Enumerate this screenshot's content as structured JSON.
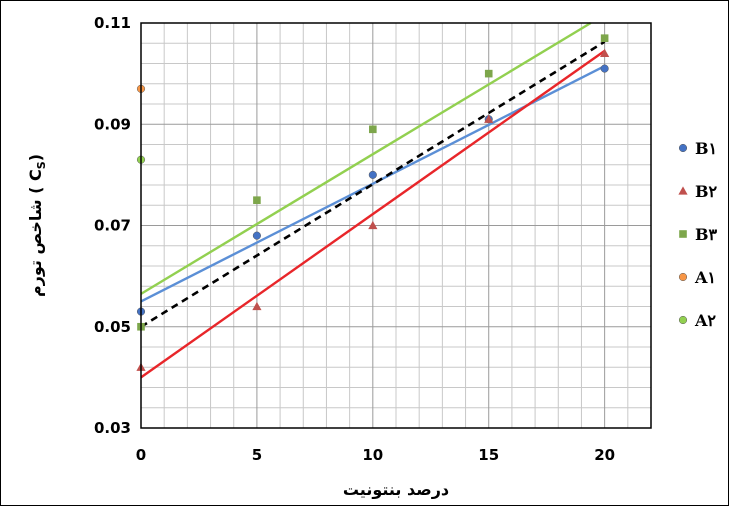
{
  "chart_data": {
    "type": "scatter",
    "xlabel": "درصد بنتونیت",
    "ylabel": "شاخص تورم ( C",
    "ylabel_sub": "S",
    "ylabel_tail": ")",
    "xlim": [
      0,
      22
    ],
    "ylim": [
      0.03,
      0.11
    ],
    "x_ticks": [
      0,
      5,
      10,
      15,
      20
    ],
    "y_ticks": [
      0.03,
      0.05,
      0.07,
      0.09,
      0.11
    ],
    "x_tick_labels": [
      "0",
      "5",
      "10",
      "15",
      "20"
    ],
    "y_tick_labels": [
      "0.03",
      "0.05",
      "0.07",
      "0.09",
      "0.11"
    ],
    "grid": true,
    "legend_position": "right",
    "series": [
      {
        "name": "B1",
        "label": "B١",
        "marker": "circle",
        "color": "#4472C4",
        "points": [
          [
            0,
            0.053
          ],
          [
            5,
            0.068
          ],
          [
            10,
            0.08
          ],
          [
            15,
            0.091
          ],
          [
            20,
            0.101
          ]
        ]
      },
      {
        "name": "B2",
        "label": "B٢",
        "marker": "triangle",
        "color": "#C0504D",
        "points": [
          [
            0,
            0.042
          ],
          [
            5,
            0.054
          ],
          [
            10,
            0.07
          ],
          [
            15,
            0.091
          ],
          [
            20,
            0.104
          ]
        ]
      },
      {
        "name": "B3",
        "label": "B٣",
        "marker": "square",
        "color": "#7DA64B",
        "points": [
          [
            0,
            0.05
          ],
          [
            5,
            0.075
          ],
          [
            10,
            0.089
          ],
          [
            15,
            0.1
          ],
          [
            20,
            0.107
          ]
        ]
      },
      {
        "name": "A1",
        "label": "A١",
        "marker": "circle",
        "color": "#F79646",
        "points": [
          [
            0,
            0.097
          ]
        ]
      },
      {
        "name": "A2",
        "label": "A٢",
        "marker": "circle",
        "color": "#92D050",
        "points": [
          [
            0,
            0.083
          ]
        ]
      }
    ],
    "trendlines": [
      {
        "series": "B1",
        "color": "#5B8FD6",
        "dashed": false,
        "from": [
          0,
          0.055
        ],
        "to": [
          20,
          0.1015
        ]
      },
      {
        "series": "B2",
        "color": "#E8262A",
        "dashed": false,
        "from": [
          0,
          0.04
        ],
        "to": [
          20,
          0.1045
        ]
      },
      {
        "series": "B3",
        "color": "#92D050",
        "dashed": false,
        "from": [
          0,
          0.0565
        ],
        "to": [
          19.4,
          0.11
        ]
      },
      {
        "series": "all",
        "color": "#000000",
        "dashed": true,
        "from": [
          0,
          0.05
        ],
        "to": [
          20,
          0.1063
        ]
      }
    ]
  }
}
